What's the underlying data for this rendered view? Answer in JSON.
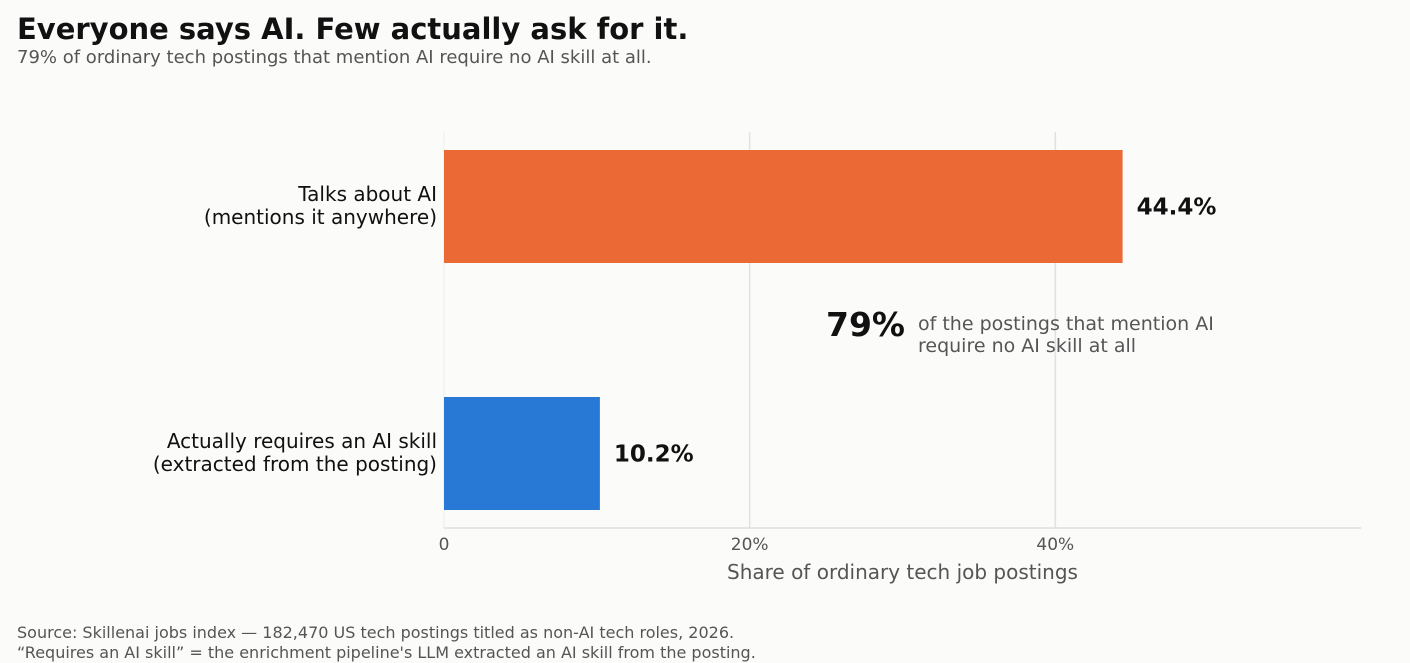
{
  "title": "Everyone says AI. Few actually ask for it.",
  "subtitle": "79% of ordinary tech postings that mention AI require no AI skill at all.",
  "chart_data": {
    "type": "bar",
    "orientation": "horizontal",
    "categories": [
      [
        "Talks about AI",
        "(mentions it anywhere)"
      ],
      [
        "Actually requires an AI skill",
        "(extracted from the posting)"
      ]
    ],
    "values": [
      44.4,
      10.2
    ],
    "value_labels": [
      "44.4%",
      "10.2%"
    ],
    "colors": [
      "#eb6935",
      "#2878d6"
    ],
    "xlabel": "Share of ordinary tech job postings",
    "xlim": [
      0,
      60
    ],
    "xticks": [
      0,
      20,
      40
    ],
    "xtick_labels": [
      "0",
      "20%",
      "40%"
    ],
    "grid": "vertical",
    "annotation": {
      "big": "79%",
      "text": [
        "of the postings that mention AI",
        "require no AI skill at all"
      ]
    }
  },
  "footer": {
    "line1": "Source: Skillenai jobs index — 182,470 US tech postings titled as non-AI tech roles, 2026.",
    "line2": "“Requires an AI skill” = the enrichment pipeline's LLM extracted an AI skill from the posting."
  }
}
